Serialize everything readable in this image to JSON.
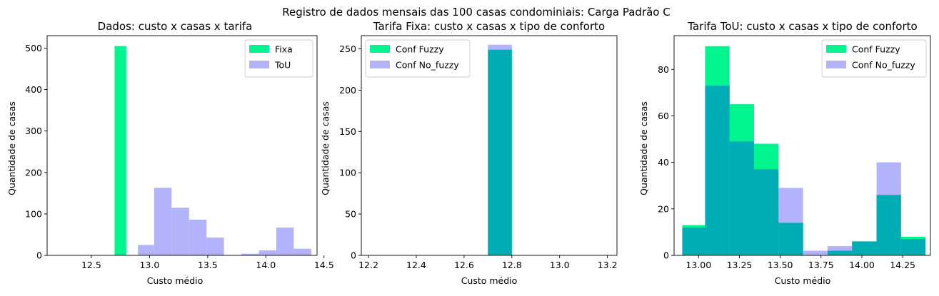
{
  "figure": {
    "suptitle": "Registro de dados mensais das 100 casas condominiais: Carga Padrão C"
  },
  "colors": {
    "fixa": "#00f58f",
    "tou": "#b3b3fc",
    "overlap": "#00adb5"
  },
  "chart_data": [
    {
      "type": "bar",
      "histtype": "histogram",
      "title": "Dados: custo x casas x tarifa",
      "xlabel": "Custo médio",
      "ylabel": "Quantidade de casas",
      "xlim": [
        12.12,
        14.44
      ],
      "ylim": [
        0,
        530
      ],
      "xticks": [
        12.5,
        13.0,
        13.5,
        14.0,
        14.5
      ],
      "xtick_labels": [
        "12.5",
        "13.0",
        "13.5",
        "14.0",
        "14.5"
      ],
      "yticks": [
        0,
        100,
        200,
        300,
        400,
        500
      ],
      "ytick_labels": [
        "0",
        "100",
        "200",
        "300",
        "400",
        "500"
      ],
      "legend_position": "upper-right",
      "series": [
        {
          "name": "Fixa",
          "color": "#00f58f",
          "bins": [
            [
              12.7,
              12.8,
              505
            ]
          ]
        },
        {
          "name": "ToU",
          "color": "#b3b3fc",
          "bins": [
            [
              12.9,
              13.04,
              25
            ],
            [
              13.04,
              13.19,
              163
            ],
            [
              13.19,
              13.34,
              115
            ],
            [
              13.34,
              13.49,
              86
            ],
            [
              13.49,
              13.64,
              43
            ],
            [
              13.64,
              13.79,
              0
            ],
            [
              13.79,
              13.94,
              4
            ],
            [
              13.94,
              14.09,
              12
            ],
            [
              14.09,
              14.24,
              67
            ],
            [
              14.24,
              14.39,
              16
            ]
          ]
        }
      ]
    },
    {
      "type": "bar",
      "histtype": "histogram",
      "title": "Tarifa Fixa: custo x casas x tipo de conforto",
      "xlabel": "Custo médio",
      "ylabel": "Quantidade de casas",
      "xlim": [
        12.17,
        13.24
      ],
      "ylim": [
        0,
        266
      ],
      "xticks": [
        12.2,
        12.4,
        12.6,
        12.8,
        13.0,
        13.2
      ],
      "xtick_labels": [
        "12.2",
        "12.4",
        "12.6",
        "12.8",
        "13.0",
        "13.2"
      ],
      "yticks": [
        0,
        50,
        100,
        150,
        200,
        250
      ],
      "ytick_labels": [
        "0",
        "50",
        "100",
        "150",
        "200",
        "250"
      ],
      "legend_position": "upper-left",
      "series": [
        {
          "name": "Conf Fuzzy",
          "color": "#00f58f",
          "bins": [
            [
              12.7,
              12.8,
              249
            ]
          ]
        },
        {
          "name": "Conf No_fuzzy",
          "color": "#b3b3fc",
          "bins": [
            [
              12.7,
              12.8,
              255
            ]
          ]
        }
      ]
    },
    {
      "type": "bar",
      "histtype": "histogram",
      "title": "Tarifa ToU: custo x casas x tipo de conforto",
      "xlabel": "Custo médio",
      "ylabel": "Quantidade de casas",
      "xlim": [
        12.85,
        14.42
      ],
      "ylim": [
        0,
        94.5
      ],
      "xticks": [
        13.0,
        13.25,
        13.5,
        13.75,
        14.0,
        14.25
      ],
      "xtick_labels": [
        "13.00",
        "13.25",
        "13.50",
        "13.75",
        "14.00",
        "14.25"
      ],
      "yticks": [
        0,
        20,
        40,
        60,
        80
      ],
      "ytick_labels": [
        "0",
        "20",
        "40",
        "60",
        "80"
      ],
      "legend_position": "upper-right",
      "series": [
        {
          "name": "Conf Fuzzy",
          "color": "#00f58f",
          "bins": [
            [
              12.9,
              13.04,
              13
            ],
            [
              13.04,
              13.19,
              90
            ],
            [
              13.19,
              13.34,
              65
            ],
            [
              13.34,
              13.49,
              48
            ],
            [
              13.49,
              13.64,
              14
            ],
            [
              13.64,
              13.79,
              0
            ],
            [
              13.79,
              13.94,
              2
            ],
            [
              13.94,
              14.09,
              6
            ],
            [
              14.09,
              14.24,
              26
            ],
            [
              14.24,
              14.39,
              8
            ]
          ]
        },
        {
          "name": "Conf No_fuzzy",
          "color": "#b3b3fc",
          "bins": [
            [
              12.9,
              13.04,
              12
            ],
            [
              13.04,
              13.19,
              73
            ],
            [
              13.19,
              13.34,
              49
            ],
            [
              13.34,
              13.49,
              37
            ],
            [
              13.49,
              13.64,
              29
            ],
            [
              13.64,
              13.79,
              2
            ],
            [
              13.79,
              13.94,
              4
            ],
            [
              13.94,
              14.09,
              6
            ],
            [
              14.09,
              14.24,
              40
            ],
            [
              14.24,
              14.39,
              7
            ]
          ]
        }
      ]
    }
  ]
}
